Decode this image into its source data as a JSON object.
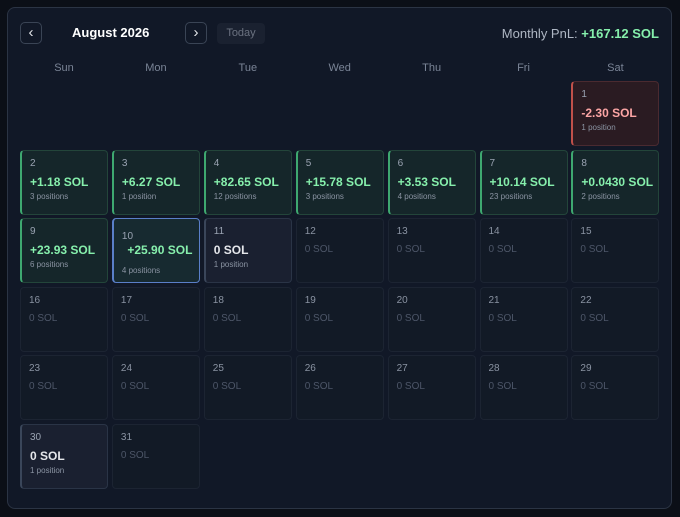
{
  "header": {
    "prev_label": "‹",
    "next_label": "›",
    "month_title": "August 2026",
    "today_label": "Today",
    "pnl_label": "Monthly PnL:",
    "pnl_value": "+167.12 SOL"
  },
  "weekdays": [
    "Sun",
    "Mon",
    "Tue",
    "Wed",
    "Thu",
    "Fri",
    "Sat"
  ],
  "first_weekday_index": 6,
  "colors": {
    "positive": "#86efac",
    "negative": "#fca5a5",
    "today_border": "#5a7fc8"
  },
  "days": [
    {
      "day": "1",
      "pnl": "-2.30 SOL",
      "positions": "1 position",
      "status": "negative"
    },
    {
      "day": "2",
      "pnl": "+1.18 SOL",
      "positions": "3 positions",
      "status": "positive"
    },
    {
      "day": "3",
      "pnl": "+6.27 SOL",
      "positions": "1 position",
      "status": "positive"
    },
    {
      "day": "4",
      "pnl": "+82.65 SOL",
      "positions": "12 positions",
      "status": "positive"
    },
    {
      "day": "5",
      "pnl": "+15.78 SOL",
      "positions": "3 positions",
      "status": "positive"
    },
    {
      "day": "6",
      "pnl": "+3.53 SOL",
      "positions": "4 positions",
      "status": "positive"
    },
    {
      "day": "7",
      "pnl": "+10.14 SOL",
      "positions": "23 positions",
      "status": "positive"
    },
    {
      "day": "8",
      "pnl": "+0.0430 SOL",
      "positions": "2 positions",
      "status": "positive"
    },
    {
      "day": "9",
      "pnl": "+23.93 SOL",
      "positions": "6 positions",
      "status": "positive"
    },
    {
      "day": "10",
      "pnl": "+25.90 SOL",
      "positions": "4 positions",
      "status": "today"
    },
    {
      "day": "11",
      "pnl": "0 SOL",
      "positions": "1 position",
      "status": "zero"
    },
    {
      "day": "12",
      "pnl": "0 SOL",
      "positions": "",
      "status": "empty"
    },
    {
      "day": "13",
      "pnl": "0 SOL",
      "positions": "",
      "status": "empty"
    },
    {
      "day": "14",
      "pnl": "0 SOL",
      "positions": "",
      "status": "empty"
    },
    {
      "day": "15",
      "pnl": "0 SOL",
      "positions": "",
      "status": "empty"
    },
    {
      "day": "16",
      "pnl": "0 SOL",
      "positions": "",
      "status": "empty"
    },
    {
      "day": "17",
      "pnl": "0 SOL",
      "positions": "",
      "status": "empty"
    },
    {
      "day": "18",
      "pnl": "0 SOL",
      "positions": "",
      "status": "empty"
    },
    {
      "day": "19",
      "pnl": "0 SOL",
      "positions": "",
      "status": "empty"
    },
    {
      "day": "20",
      "pnl": "0 SOL",
      "positions": "",
      "status": "empty"
    },
    {
      "day": "21",
      "pnl": "0 SOL",
      "positions": "",
      "status": "empty"
    },
    {
      "day": "22",
      "pnl": "0 SOL",
      "positions": "",
      "status": "empty"
    },
    {
      "day": "23",
      "pnl": "0 SOL",
      "positions": "",
      "status": "empty"
    },
    {
      "day": "24",
      "pnl": "0 SOL",
      "positions": "",
      "status": "empty"
    },
    {
      "day": "25",
      "pnl": "0 SOL",
      "positions": "",
      "status": "empty"
    },
    {
      "day": "26",
      "pnl": "0 SOL",
      "positions": "",
      "status": "empty"
    },
    {
      "day": "27",
      "pnl": "0 SOL",
      "positions": "",
      "status": "empty"
    },
    {
      "day": "28",
      "pnl": "0 SOL",
      "positions": "",
      "status": "empty"
    },
    {
      "day": "29",
      "pnl": "0 SOL",
      "positions": "",
      "status": "empty"
    },
    {
      "day": "30",
      "pnl": "0 SOL",
      "positions": "1 position",
      "status": "zero"
    },
    {
      "day": "31",
      "pnl": "0 SOL",
      "positions": "",
      "status": "empty"
    }
  ]
}
